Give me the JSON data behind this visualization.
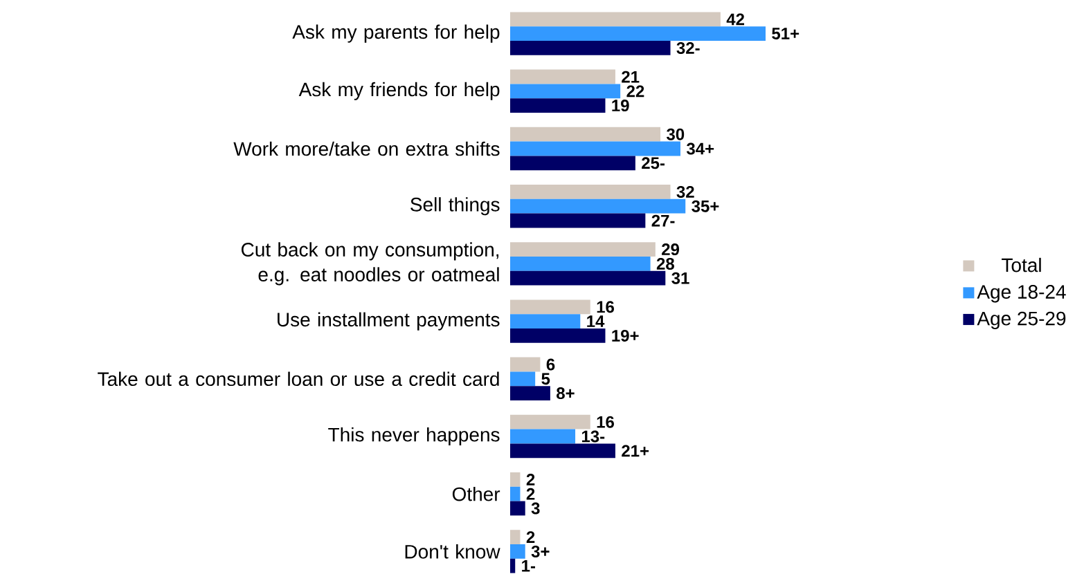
{
  "chart_data": {
    "type": "bar",
    "orientation": "horizontal",
    "categories": [
      "Ask my parents for help",
      "Ask my friends for help",
      "Work more/take on extra shifts",
      "Sell things",
      "Cut back on my consumption, e.g. eat noodles or oatmeal",
      "Use installment payments",
      "Take out a consumer loan or use a credit card",
      "This never happens",
      "Other",
      "Don't know"
    ],
    "series": [
      {
        "name": "Total",
        "color": "#d4c9bf",
        "values": [
          42,
          21,
          30,
          32,
          29,
          16,
          6,
          16,
          2,
          2
        ],
        "value_labels": [
          "42",
          "21",
          "30",
          "32",
          "29",
          "16",
          "6",
          "16",
          "2",
          "2"
        ]
      },
      {
        "name": "Age 18-24",
        "color": "#3399ff",
        "values": [
          51,
          22,
          34,
          35,
          28,
          14,
          5,
          13,
          2,
          3
        ],
        "value_labels": [
          "51+",
          "22",
          "34+",
          "35+",
          "28",
          "14",
          "5",
          "13-",
          "2",
          "3+"
        ]
      },
      {
        "name": "Age 25-29",
        "color": "#000066",
        "values": [
          32,
          19,
          25,
          27,
          31,
          19,
          8,
          21,
          3,
          1
        ],
        "value_labels": [
          "32-",
          "19",
          "25-",
          "27-",
          "31",
          "19+",
          "8+",
          "21+",
          "3",
          "1-"
        ]
      }
    ],
    "legend": "right"
  }
}
